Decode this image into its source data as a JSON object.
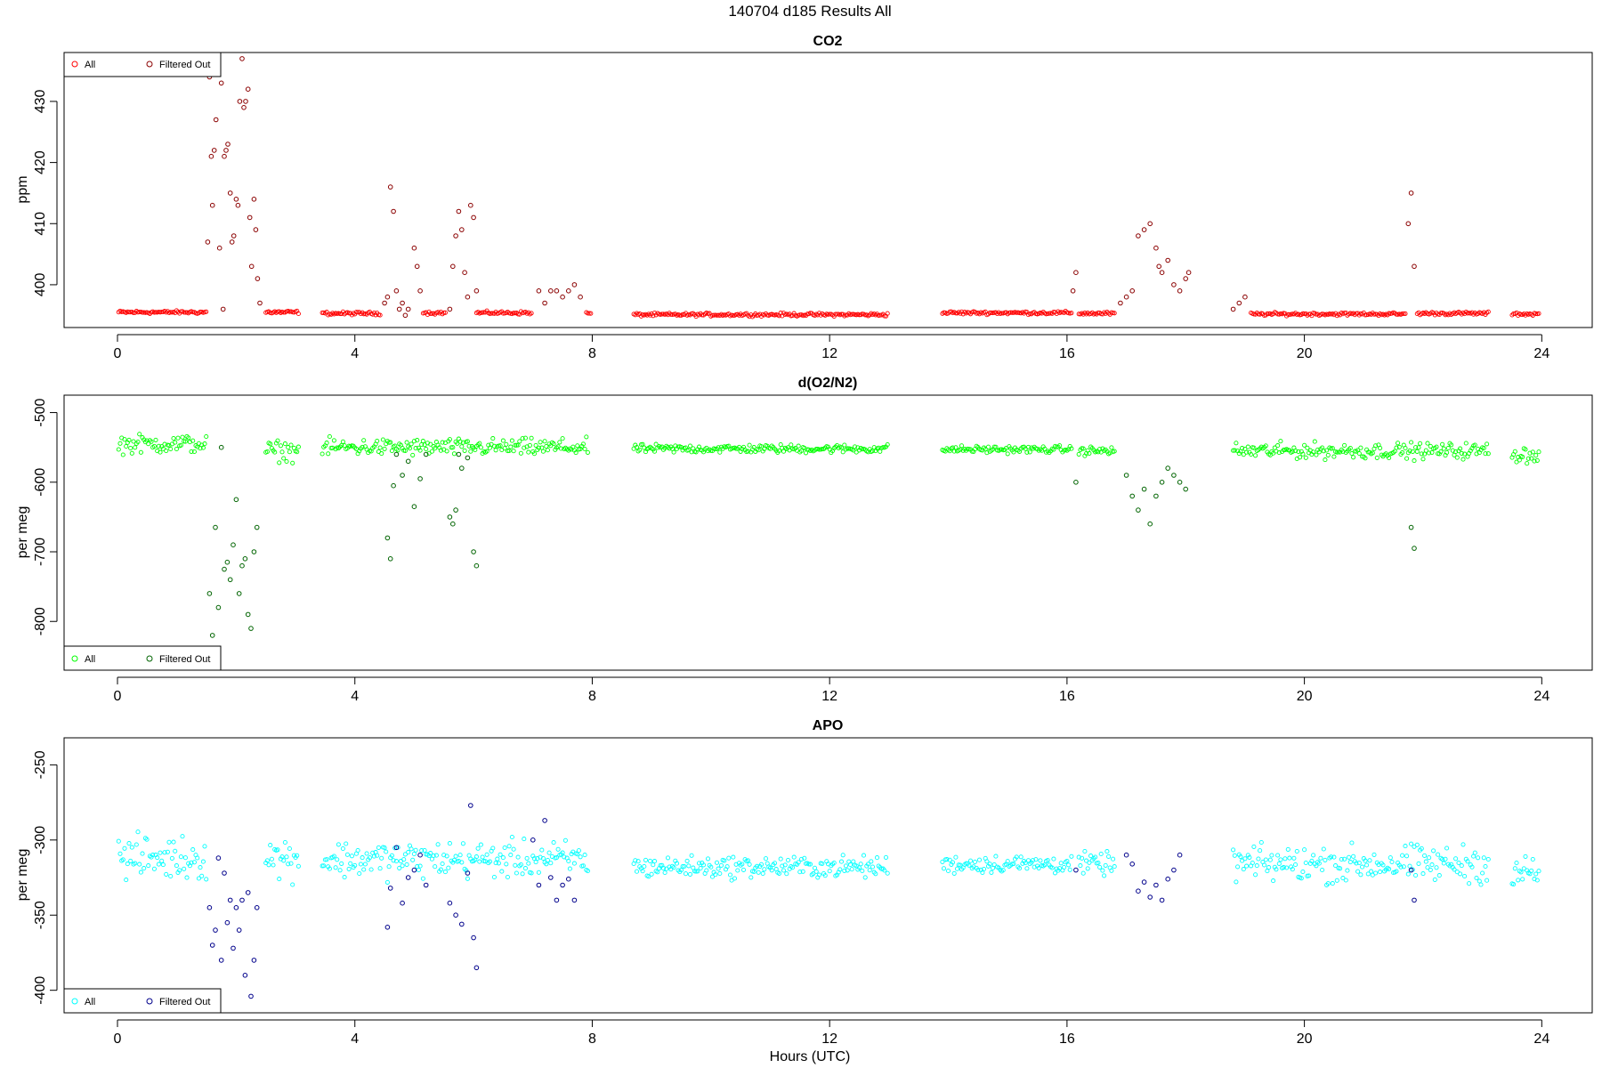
{
  "figure": {
    "title": "140704   d185   Results All",
    "xlabel": "Hours (UTC)"
  },
  "legend_symbol": "○",
  "chart_data": [
    {
      "type": "scatter",
      "title": "CO2",
      "ylabel": "ppm",
      "xlim": [
        -0.9,
        24.85
      ],
      "ylim": [
        393,
        438
      ],
      "xticks": [
        0,
        4,
        8,
        12,
        16,
        20,
        24
      ],
      "yticks": [
        400,
        410,
        420,
        430
      ],
      "grid": false,
      "legend": {
        "placement": "top-left",
        "entries": [
          "All",
          "Filtered Out"
        ]
      },
      "colors": {
        "all": "#ff0000",
        "filtered": "#8b0000"
      },
      "baseline_segments": [
        {
          "x": [
            0.02,
            1.5
          ],
          "y": 395.5
        },
        {
          "x": [
            2.5,
            3.05
          ],
          "y": 395.5
        },
        {
          "x": [
            3.45,
            4.45
          ],
          "y": 395.3
        },
        {
          "x": [
            5.15,
            5.55
          ],
          "y": 395.4
        },
        {
          "x": [
            6.05,
            7.0
          ],
          "y": 395.4
        },
        {
          "x": [
            7.9,
            8.0
          ],
          "y": 395.3
        },
        {
          "x": [
            8.7,
            13.0
          ],
          "y": 395.1
        },
        {
          "x": [
            13.9,
            16.1
          ],
          "y": 395.4
        },
        {
          "x": [
            16.2,
            16.8
          ],
          "y": 395.3
        },
        {
          "x": [
            19.1,
            21.7
          ],
          "y": 395.2
        },
        {
          "x": [
            21.9,
            23.1
          ],
          "y": 395.3
        },
        {
          "x": [
            23.5,
            23.95
          ],
          "y": 395.2
        }
      ],
      "filtered_points": {
        "x": [
          1.52,
          1.55,
          1.58,
          1.6,
          1.63,
          1.66,
          1.7,
          1.72,
          1.75,
          1.78,
          1.8,
          1.83,
          1.86,
          1.9,
          1.93,
          1.96,
          2.0,
          2.03,
          2.06,
          2.1,
          2.13,
          2.16,
          2.2,
          2.23,
          2.26,
          2.3,
          2.33,
          2.36,
          2.4,
          4.5,
          4.55,
          4.6,
          4.65,
          4.7,
          4.75,
          4.8,
          4.85,
          4.9,
          5.0,
          5.05,
          5.1,
          5.6,
          5.65,
          5.7,
          5.75,
          5.8,
          5.85,
          5.9,
          5.95,
          6.0,
          6.05,
          7.1,
          7.2,
          7.3,
          7.4,
          7.5,
          7.6,
          7.7,
          7.8,
          16.1,
          16.15,
          16.9,
          17.0,
          17.1,
          17.2,
          17.3,
          17.4,
          17.5,
          17.55,
          17.6,
          17.7,
          17.8,
          17.9,
          18.0,
          18.05,
          18.8,
          18.9,
          19.0,
          21.75,
          21.8,
          21.85
        ],
        "y": [
          407,
          434,
          421,
          413,
          422,
          427,
          435,
          406,
          433,
          396,
          421,
          422,
          423,
          415,
          407,
          408,
          414,
          413,
          430,
          437,
          429,
          430,
          432,
          411,
          403,
          414,
          409,
          401,
          397,
          397,
          398,
          416,
          412,
          399,
          396,
          397,
          395,
          396,
          406,
          403,
          399,
          396,
          403,
          408,
          412,
          409,
          402,
          398,
          413,
          411,
          399,
          399,
          397,
          399,
          399,
          398,
          399,
          400,
          398,
          399,
          402,
          397,
          398,
          399,
          408,
          409,
          410,
          406,
          403,
          402,
          404,
          400,
          399,
          401,
          402,
          396,
          397,
          398,
          410,
          415,
          403
        ]
      }
    },
    {
      "type": "scatter",
      "title": "d(O2/N2)",
      "ylabel": "per meg",
      "xlim": [
        -0.9,
        24.85
      ],
      "ylim": [
        -870,
        -475
      ],
      "xticks": [
        0,
        4,
        8,
        12,
        16,
        20,
        24
      ],
      "yticks": [
        -800,
        -700,
        -600,
        -500
      ],
      "grid": false,
      "legend": {
        "placement": "bottom-left",
        "entries": [
          "All",
          "Filtered Out"
        ]
      },
      "colors": {
        "all": "#00ff00",
        "filtered": "#006400"
      },
      "baseline_segments": [
        {
          "x": [
            0.02,
            1.5
          ],
          "y": -545,
          "noise": 13
        },
        {
          "x": [
            2.5,
            3.05
          ],
          "y": -555,
          "noise": 14
        },
        {
          "x": [
            3.45,
            7.95
          ],
          "y": -550,
          "noise": 12
        },
        {
          "x": [
            8.7,
            13.0
          ],
          "y": -552,
          "noise": 6
        },
        {
          "x": [
            13.9,
            16.1
          ],
          "y": -553,
          "noise": 5
        },
        {
          "x": [
            16.2,
            16.8
          ],
          "y": -555,
          "noise": 6
        },
        {
          "x": [
            18.8,
            23.1
          ],
          "y": -555,
          "noise": 11
        },
        {
          "x": [
            23.5,
            23.95
          ],
          "y": -560,
          "noise": 12
        }
      ],
      "filtered_points": {
        "x": [
          1.55,
          1.6,
          1.65,
          1.7,
          1.75,
          1.8,
          1.85,
          1.9,
          1.95,
          2.0,
          2.05,
          2.1,
          2.15,
          2.2,
          2.25,
          2.3,
          2.35,
          4.55,
          4.6,
          4.65,
          4.7,
          4.8,
          4.9,
          5.0,
          5.1,
          5.2,
          5.6,
          5.65,
          5.7,
          5.75,
          5.8,
          5.9,
          6.0,
          6.05,
          16.15,
          17.0,
          17.1,
          17.2,
          17.3,
          17.4,
          17.5,
          17.6,
          17.7,
          17.8,
          17.9,
          18.0,
          21.8,
          21.85
        ],
        "y": [
          -760,
          -820,
          -665,
          -780,
          -550,
          -725,
          -715,
          -740,
          -690,
          -625,
          -760,
          -720,
          -710,
          -790,
          -810,
          -700,
          -665,
          -680,
          -710,
          -605,
          -560,
          -590,
          -570,
          -635,
          -595,
          -560,
          -650,
          -660,
          -640,
          -560,
          -580,
          -565,
          -700,
          -720,
          -600,
          -590,
          -620,
          -640,
          -610,
          -660,
          -620,
          -600,
          -580,
          -590,
          -600,
          -610,
          -665,
          -695
        ]
      }
    },
    {
      "type": "scatter",
      "title": "APO",
      "ylabel": "per meg",
      "xlim": [
        -0.9,
        24.85
      ],
      "ylim": [
        -415,
        -232
      ],
      "xticks": [
        0,
        4,
        8,
        12,
        16,
        20,
        24
      ],
      "yticks": [
        -400,
        -350,
        -300,
        -250
      ],
      "grid": false,
      "legend": {
        "placement": "bottom-left",
        "entries": [
          "All",
          "Filtered Out"
        ]
      },
      "colors": {
        "all": "#00ffff",
        "filtered": "#00008b"
      },
      "baseline_segments": [
        {
          "x": [
            0.02,
            1.5
          ],
          "y": -312,
          "noise": 14
        },
        {
          "x": [
            2.5,
            3.05
          ],
          "y": -312,
          "noise": 14
        },
        {
          "x": [
            3.45,
            7.95
          ],
          "y": -313,
          "noise": 12
        },
        {
          "x": [
            8.7,
            13.0
          ],
          "y": -318,
          "noise": 7
        },
        {
          "x": [
            13.9,
            16.1
          ],
          "y": -316,
          "noise": 6
        },
        {
          "x": [
            16.2,
            16.8
          ],
          "y": -316,
          "noise": 7
        },
        {
          "x": [
            18.8,
            23.1
          ],
          "y": -316,
          "noise": 12
        },
        {
          "x": [
            23.5,
            23.95
          ],
          "y": -322,
          "noise": 12
        }
      ],
      "filtered_points": {
        "x": [
          1.55,
          1.6,
          1.65,
          1.7,
          1.75,
          1.8,
          1.85,
          1.9,
          1.95,
          2.0,
          2.05,
          2.1,
          2.15,
          2.2,
          2.25,
          2.3,
          2.35,
          4.55,
          4.6,
          4.7,
          4.8,
          4.9,
          5.0,
          5.1,
          5.2,
          5.6,
          5.7,
          5.8,
          5.9,
          5.95,
          6.0,
          6.05,
          7.0,
          7.1,
          7.2,
          7.3,
          7.4,
          7.5,
          7.6,
          7.7,
          16.15,
          17.0,
          17.1,
          17.2,
          17.3,
          17.4,
          17.5,
          17.6,
          17.7,
          17.8,
          17.9,
          21.8,
          21.85
        ],
        "y": [
          -345,
          -370,
          -360,
          -312,
          -380,
          -322,
          -355,
          -340,
          -372,
          -345,
          -360,
          -340,
          -390,
          -335,
          -404,
          -380,
          -345,
          -358,
          -332,
          -305,
          -342,
          -325,
          -320,
          -310,
          -330,
          -342,
          -350,
          -356,
          -322,
          -277,
          -365,
          -385,
          -300,
          -330,
          -287,
          -325,
          -340,
          -330,
          -326,
          -340,
          -320,
          -310,
          -316,
          -334,
          -328,
          -338,
          -330,
          -340,
          -326,
          -320,
          -310,
          -320,
          -340
        ]
      }
    }
  ]
}
